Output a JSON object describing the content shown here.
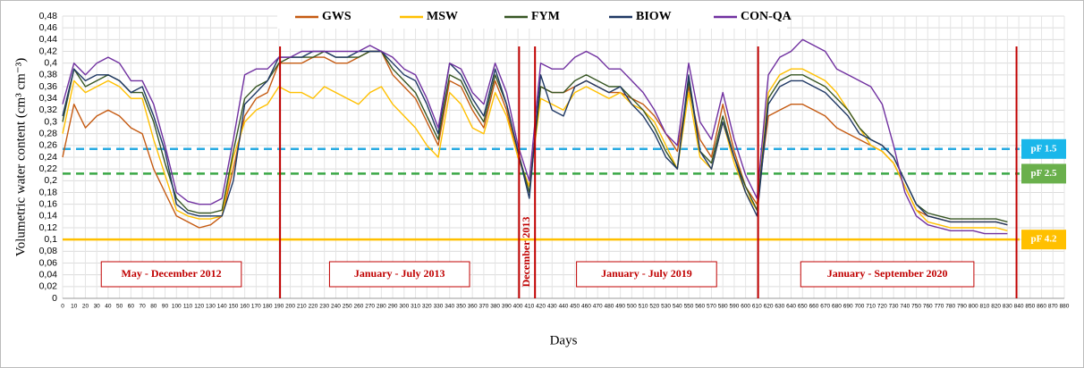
{
  "chart_data": {
    "type": "line",
    "ylabel": "Volumetric water content (cm³ cm⁻³)",
    "xlabel": "Days",
    "xlim": [
      0,
      880
    ],
    "xticks": [
      0,
      10,
      20,
      30,
      40,
      50,
      60,
      70,
      80,
      90,
      100,
      110,
      120,
      130,
      140,
      150,
      160,
      170,
      180,
      190,
      200,
      210,
      220,
      230,
      240,
      250,
      260,
      270,
      280,
      290,
      300,
      310,
      320,
      330,
      340,
      350,
      360,
      370,
      380,
      390,
      400,
      410,
      420,
      430,
      440,
      450,
      460,
      470,
      480,
      490,
      500,
      510,
      520,
      530,
      540,
      550,
      560,
      570,
      580,
      590,
      600,
      610,
      620,
      630,
      640,
      650,
      660,
      670,
      680,
      690,
      700,
      710,
      720,
      730,
      740,
      750,
      760,
      770,
      780,
      790,
      800,
      810,
      820,
      830,
      840,
      850,
      860,
      870,
      880
    ],
    "ylim": [
      0,
      0.48
    ],
    "yticks": [
      0,
      {
        "value": 0.02,
        "label": "0,02"
      },
      {
        "value": 0.04,
        "label": "0,04"
      },
      {
        "value": 0.06,
        "label": "0,06"
      },
      {
        "value": 0.08,
        "label": "0,08"
      },
      {
        "value": 0.1,
        "label": "0,1"
      },
      {
        "value": 0.12,
        "label": "0,12"
      },
      {
        "value": 0.14,
        "label": "0,14"
      },
      {
        "value": 0.16,
        "label": "0,16"
      },
      {
        "value": 0.18,
        "label": "0,18"
      },
      {
        "value": 0.2,
        "label": "0,2"
      },
      {
        "value": 0.22,
        "label": "0,22"
      },
      {
        "value": 0.24,
        "label": "0,24"
      },
      {
        "value": 0.26,
        "label": "0,26"
      },
      {
        "value": 0.28,
        "label": "0,28"
      },
      {
        "value": 0.3,
        "label": "0,3"
      },
      {
        "value": 0.32,
        "label": "0,32"
      },
      {
        "value": 0.34,
        "label": "0,34"
      },
      {
        "value": 0.36,
        "label": "0,36"
      },
      {
        "value": 0.38,
        "label": "0,38"
      },
      {
        "value": 0.4,
        "label": "0,4"
      },
      {
        "value": 0.42,
        "label": "0,42"
      },
      {
        "value": 0.44,
        "label": "0,44"
      },
      {
        "value": 0.46,
        "label": "0,46"
      },
      {
        "value": 0.48,
        "label": "0,48"
      }
    ],
    "grid": true,
    "x": [
      0,
      10,
      20,
      30,
      40,
      50,
      60,
      70,
      80,
      90,
      100,
      110,
      120,
      130,
      140,
      150,
      160,
      170,
      180,
      190,
      200,
      210,
      220,
      230,
      240,
      250,
      260,
      270,
      280,
      290,
      300,
      310,
      320,
      330,
      340,
      350,
      360,
      370,
      380,
      390,
      400,
      410,
      420,
      430,
      440,
      450,
      460,
      470,
      480,
      490,
      500,
      510,
      520,
      530,
      540,
      550,
      560,
      570,
      580,
      590,
      600,
      610,
      620,
      630,
      640,
      650,
      660,
      670,
      680,
      690,
      700,
      710,
      720,
      730,
      740,
      750,
      760,
      770,
      780,
      790,
      800,
      810,
      820,
      830
    ],
    "series": [
      {
        "name": "GWS",
        "color": "#c55a11",
        "values": [
          0.24,
          0.33,
          0.29,
          0.31,
          0.32,
          0.31,
          0.29,
          0.28,
          0.22,
          0.18,
          0.14,
          0.13,
          0.12,
          0.125,
          0.14,
          0.22,
          0.31,
          0.34,
          0.35,
          0.4,
          0.4,
          0.4,
          0.41,
          0.41,
          0.4,
          0.4,
          0.41,
          0.42,
          0.42,
          0.38,
          0.36,
          0.34,
          0.3,
          0.26,
          0.37,
          0.36,
          0.32,
          0.29,
          0.37,
          0.32,
          0.24,
          0.19,
          0.36,
          0.35,
          0.35,
          0.36,
          0.37,
          0.36,
          0.35,
          0.35,
          0.34,
          0.33,
          0.31,
          0.28,
          0.25,
          0.36,
          0.27,
          0.24,
          0.33,
          0.25,
          0.19,
          0.16,
          0.31,
          0.32,
          0.33,
          0.33,
          0.32,
          0.31,
          0.29,
          0.28,
          0.27,
          0.26,
          0.25,
          0.23,
          0.19,
          0.15,
          0.14,
          0.135,
          0.13,
          0.13,
          0.13,
          0.13,
          0.13,
          0.125
        ]
      },
      {
        "name": "MSW",
        "color": "#ffc000",
        "values": [
          0.28,
          0.37,
          0.35,
          0.36,
          0.37,
          0.36,
          0.34,
          0.34,
          0.27,
          0.21,
          0.15,
          0.14,
          0.135,
          0.135,
          0.14,
          0.24,
          0.3,
          0.32,
          0.33,
          0.36,
          0.35,
          0.35,
          0.34,
          0.36,
          0.35,
          0.34,
          0.33,
          0.35,
          0.36,
          0.33,
          0.31,
          0.29,
          0.26,
          0.24,
          0.35,
          0.33,
          0.29,
          0.28,
          0.35,
          0.31,
          0.24,
          0.19,
          0.34,
          0.33,
          0.32,
          0.35,
          0.36,
          0.35,
          0.34,
          0.35,
          0.33,
          0.32,
          0.3,
          0.26,
          0.22,
          0.35,
          0.24,
          0.22,
          0.3,
          0.23,
          0.18,
          0.15,
          0.35,
          0.38,
          0.39,
          0.39,
          0.38,
          0.37,
          0.35,
          0.32,
          0.29,
          0.26,
          0.25,
          0.23,
          0.19,
          0.15,
          0.13,
          0.125,
          0.12,
          0.12,
          0.12,
          0.12,
          0.12,
          0.115
        ]
      },
      {
        "name": "FYM",
        "color": "#375623",
        "values": [
          0.3,
          0.39,
          0.36,
          0.37,
          0.38,
          0.37,
          0.35,
          0.35,
          0.3,
          0.23,
          0.17,
          0.15,
          0.145,
          0.145,
          0.15,
          0.25,
          0.34,
          0.36,
          0.37,
          0.4,
          0.41,
          0.41,
          0.41,
          0.42,
          0.41,
          0.41,
          0.41,
          0.42,
          0.42,
          0.39,
          0.37,
          0.35,
          0.31,
          0.27,
          0.38,
          0.37,
          0.33,
          0.3,
          0.38,
          0.33,
          0.25,
          0.18,
          0.36,
          0.35,
          0.35,
          0.37,
          0.38,
          0.37,
          0.36,
          0.36,
          0.34,
          0.32,
          0.29,
          0.25,
          0.22,
          0.37,
          0.25,
          0.23,
          0.31,
          0.24,
          0.19,
          0.15,
          0.34,
          0.37,
          0.38,
          0.38,
          0.37,
          0.36,
          0.34,
          0.32,
          0.29,
          0.27,
          0.26,
          0.24,
          0.2,
          0.16,
          0.145,
          0.14,
          0.135,
          0.135,
          0.135,
          0.135,
          0.135,
          0.13
        ]
      },
      {
        "name": "BIOW",
        "color": "#1f3864",
        "values": [
          0.31,
          0.39,
          0.37,
          0.38,
          0.38,
          0.37,
          0.35,
          0.36,
          0.31,
          0.25,
          0.16,
          0.145,
          0.14,
          0.14,
          0.14,
          0.2,
          0.33,
          0.35,
          0.37,
          0.41,
          0.41,
          0.41,
          0.42,
          0.42,
          0.41,
          0.41,
          0.42,
          0.42,
          0.42,
          0.4,
          0.38,
          0.37,
          0.33,
          0.28,
          0.4,
          0.38,
          0.34,
          0.31,
          0.39,
          0.33,
          0.25,
          0.17,
          0.38,
          0.32,
          0.31,
          0.36,
          0.37,
          0.36,
          0.35,
          0.36,
          0.33,
          0.31,
          0.28,
          0.24,
          0.22,
          0.38,
          0.25,
          0.22,
          0.3,
          0.24,
          0.18,
          0.14,
          0.33,
          0.36,
          0.37,
          0.37,
          0.36,
          0.35,
          0.33,
          0.31,
          0.28,
          0.27,
          0.26,
          0.24,
          0.2,
          0.16,
          0.14,
          0.135,
          0.13,
          0.13,
          0.13,
          0.13,
          0.13,
          0.125
        ]
      },
      {
        "name": "CON-QA",
        "color": "#7030a0",
        "values": [
          0.33,
          0.4,
          0.38,
          0.4,
          0.41,
          0.4,
          0.37,
          0.37,
          0.33,
          0.26,
          0.18,
          0.165,
          0.16,
          0.16,
          0.17,
          0.27,
          0.38,
          0.39,
          0.39,
          0.41,
          0.41,
          0.42,
          0.42,
          0.42,
          0.42,
          0.42,
          0.42,
          0.43,
          0.42,
          0.41,
          0.39,
          0.38,
          0.34,
          0.29,
          0.4,
          0.39,
          0.35,
          0.33,
          0.4,
          0.35,
          0.26,
          0.2,
          0.4,
          0.39,
          0.39,
          0.41,
          0.42,
          0.41,
          0.39,
          0.39,
          0.37,
          0.35,
          0.32,
          0.28,
          0.26,
          0.4,
          0.3,
          0.27,
          0.35,
          0.27,
          0.21,
          0.17,
          0.38,
          0.41,
          0.42,
          0.44,
          0.43,
          0.42,
          0.39,
          0.38,
          0.37,
          0.36,
          0.33,
          0.26,
          0.18,
          0.14,
          0.125,
          0.12,
          0.115,
          0.115,
          0.115,
          0.11,
          0.11,
          0.11
        ]
      }
    ],
    "reference_lines": [
      {
        "label": "pF 1.5",
        "value": 0.254,
        "color": "#29abe2",
        "badge_color": "#1ab7ea",
        "dashed": true
      },
      {
        "label": "pF 2.5",
        "value": 0.212,
        "color": "#3aa846",
        "badge_color": "#6ab04c",
        "dashed": true
      },
      {
        "label": "pF 4.2",
        "value": 0.1,
        "color": "#ffc000",
        "badge_color": "#ffc000",
        "dashed": false
      }
    ],
    "period_boundaries": [
      191,
      401,
      415,
      611,
      838
    ],
    "period_color": "#c00000",
    "periods": [
      "May - December 2012",
      "January - July 2013",
      "December 2013",
      "January - July 2019",
      "January - September 2020"
    ]
  }
}
